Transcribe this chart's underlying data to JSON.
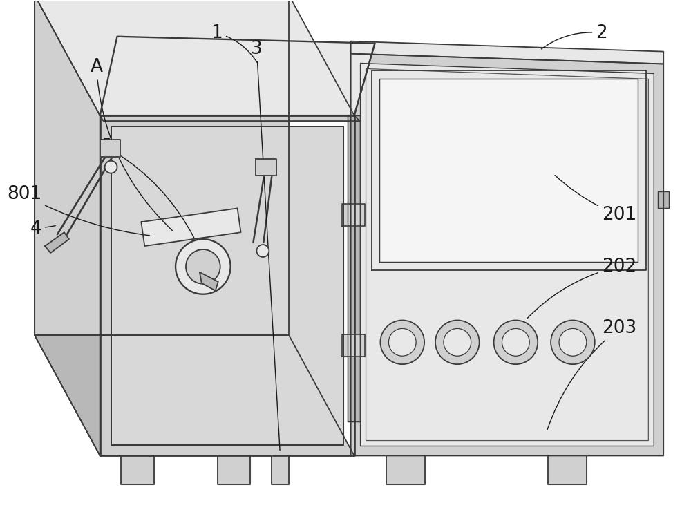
{
  "bg_color": "#ffffff",
  "lc": "#3a3a3a",
  "lw": 1.3,
  "label_fontsize": 19,
  "anno_color": "#1a1a1a",
  "anno_lw": 1.0,
  "fill_light": "#e8e8e8",
  "fill_mid": "#d0d0d0",
  "fill_dark": "#b8b8b8",
  "fill_white": "#f5f5f5"
}
